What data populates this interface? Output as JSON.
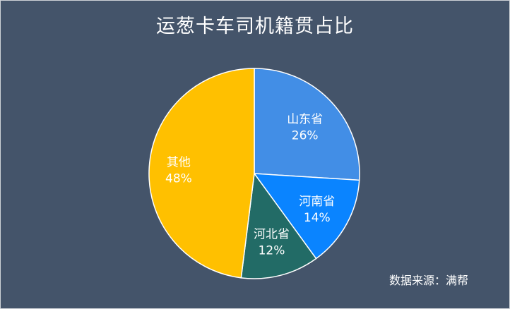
{
  "chart_data": {
    "type": "pie",
    "title": "运葱卡车司机籍贯占比",
    "slices": [
      {
        "label": "山东省",
        "value": 26,
        "value_text": "26%",
        "color": "#428ee6"
      },
      {
        "label": "河南省",
        "value": 14,
        "value_text": "14%",
        "color": "#0a84ff"
      },
      {
        "label": "河北省",
        "value": 12,
        "value_text": "12%",
        "color": "#226b66"
      },
      {
        "label": "其他",
        "value": 48,
        "value_text": "48%",
        "color": "#ffc000"
      }
    ],
    "legend": "none",
    "start": "12 o'clock, clockwise"
  },
  "source": "数据来源：满帮",
  "colors": {
    "background": "#44546a",
    "text": "#ffffff"
  }
}
